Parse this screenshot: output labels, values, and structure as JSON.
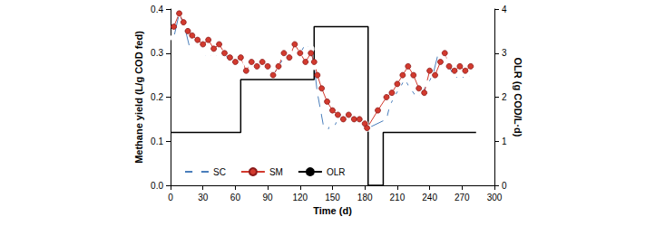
{
  "chart_data": {
    "type": "line",
    "x_label": "Time (d)",
    "y_label": "Methane yield (L/g COD fed)",
    "y2_label": "OLR (g COD/L·d)",
    "xlim": [
      0,
      300
    ],
    "xticks": [
      0,
      30,
      60,
      90,
      120,
      150,
      180,
      210,
      240,
      270,
      300
    ],
    "ylim": [
      0,
      0.4
    ],
    "yticks": [
      {
        "value": 0,
        "label": "0.0"
      },
      {
        "value": 0.1,
        "label": "0.1"
      },
      {
        "value": 0.2,
        "label": "0.2"
      },
      {
        "value": 0.3,
        "label": "0.3"
      },
      {
        "value": 0.4,
        "label": "0.4"
      }
    ],
    "y2lim": [
      0,
      4
    ],
    "y2ticks": [
      0,
      1,
      2,
      3,
      4
    ],
    "grid": false,
    "legend": "lower left",
    "series": [
      {
        "name": "SC",
        "color": "#4a7ebb",
        "marker": "circle-open",
        "line_style": "solid",
        "x": [
          3,
          8,
          13,
          18,
          22,
          26,
          30,
          35,
          40,
          45,
          50,
          55,
          60,
          65,
          70,
          75,
          80,
          85,
          90,
          95,
          100,
          105,
          110,
          115,
          120,
          125,
          130,
          133,
          136,
          139,
          142,
          145,
          148,
          151,
          155,
          160,
          165,
          170,
          175,
          180,
          183,
          200,
          203,
          207,
          212,
          217,
          222,
          228,
          233,
          238,
          243,
          248,
          252,
          256,
          262,
          268,
          274,
          280
        ],
        "values": [
          0.335,
          0.39,
          0.36,
          0.31,
          0.32,
          0.31,
          0.3,
          0.29,
          0.3,
          0.29,
          0.3,
          0.28,
          0.28,
          0.27,
          0.28,
          0.27,
          0.28,
          0.27,
          0.26,
          0.25,
          0.27,
          0.29,
          0.3,
          0.29,
          0.3,
          0.32,
          0.31,
          0.27,
          0.21,
          0.17,
          0.13,
          0.12,
          0.14,
          0.13,
          0.15,
          0.16,
          0.15,
          0.15,
          0.14,
          0.14,
          0.13,
          0.15,
          0.18,
          0.2,
          0.22,
          0.24,
          0.22,
          0.2,
          0.21,
          0.23,
          0.25,
          0.3,
          0.29,
          0.28,
          0.25,
          0.24,
          0.25,
          0.245
        ]
      },
      {
        "name": "SM",
        "color": "#d23a2e",
        "marker": "circle",
        "line_style": "solid",
        "x": [
          3,
          8,
          12,
          16,
          20,
          25,
          30,
          35,
          40,
          45,
          50,
          55,
          60,
          65,
          70,
          75,
          80,
          85,
          90,
          95,
          100,
          105,
          110,
          115,
          120,
          125,
          130,
          133,
          136,
          140,
          145,
          150,
          155,
          160,
          165,
          170,
          175,
          180,
          182,
          192,
          200,
          205,
          210,
          215,
          220,
          225,
          230,
          235,
          240,
          245,
          250,
          254,
          258,
          263,
          268,
          273,
          278
        ],
        "values": [
          0.36,
          0.39,
          0.37,
          0.35,
          0.34,
          0.33,
          0.32,
          0.33,
          0.31,
          0.32,
          0.3,
          0.29,
          0.28,
          0.29,
          0.26,
          0.28,
          0.27,
          0.28,
          0.27,
          0.25,
          0.27,
          0.3,
          0.29,
          0.32,
          0.3,
          0.28,
          0.3,
          0.28,
          0.25,
          0.22,
          0.19,
          0.17,
          0.16,
          0.15,
          0.16,
          0.15,
          0.15,
          0.14,
          0.13,
          0.17,
          0.2,
          0.21,
          0.23,
          0.25,
          0.27,
          0.25,
          0.22,
          0.21,
          0.26,
          0.25,
          0.28,
          0.3,
          0.27,
          0.26,
          0.27,
          0.26,
          0.27
        ]
      },
      {
        "name": "OLR",
        "color": "#000000",
        "marker": "none",
        "line_style": "solid",
        "axis": "y2",
        "x": [
          0,
          65,
          65,
          133,
          133,
          183,
          183,
          197,
          197,
          283
        ],
        "values": [
          1.2,
          1.2,
          2.4,
          2.4,
          3.6,
          3.6,
          0,
          0,
          1.2,
          1.2
        ]
      }
    ]
  }
}
